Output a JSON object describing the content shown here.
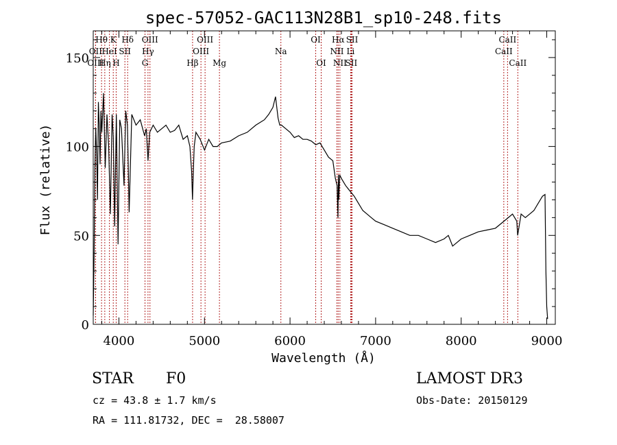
{
  "chart_data": {
    "type": "line",
    "title": "spec-57052-GAC113N28B1_sp10-248.fits",
    "xlabel": "Wavelength (Å)",
    "ylabel": "Flux (relative)",
    "xlim": [
      3700,
      9100
    ],
    "ylim": [
      0,
      165
    ],
    "x_ticks": [
      4000,
      5000,
      6000,
      7000,
      8000,
      9000
    ],
    "y_ticks": [
      0,
      50,
      100,
      150
    ],
    "line_color": "#000000",
    "marker_color": "#b22222",
    "series": [
      {
        "x": [
          3700,
          3710,
          3720,
          3730,
          3740,
          3750,
          3760,
          3770,
          3780,
          3790,
          3800,
          3820,
          3840,
          3860,
          3880,
          3900,
          3920,
          3935,
          3950,
          3970,
          3990,
          4010,
          4030,
          4060,
          4080,
          4100,
          4120,
          4150,
          4200,
          4250,
          4300,
          4320,
          4340,
          4360,
          4400,
          4450,
          4500,
          4550,
          4600,
          4650,
          4700,
          4750,
          4800,
          4830,
          4850,
          4860,
          4870,
          4880,
          4900,
          4950,
          5000,
          5050,
          5100,
          5150,
          5200,
          5300,
          5400,
          5500,
          5600,
          5700,
          5750,
          5800,
          5830,
          5860,
          5880,
          5900,
          5950,
          6000,
          6050,
          6100,
          6150,
          6200,
          6250,
          6300,
          6350,
          6400,
          6450,
          6500,
          6530,
          6550,
          6560,
          6565,
          6570,
          6580,
          6600,
          6650,
          6700,
          6750,
          6800,
          6850,
          6900,
          6950,
          7000,
          7100,
          7200,
          7300,
          7400,
          7500,
          7600,
          7700,
          7800,
          7850,
          7900,
          8000,
          8100,
          8200,
          8300,
          8400,
          8500,
          8550,
          8600,
          8650,
          8660,
          8700,
          8750,
          8800,
          8850,
          8900,
          8950,
          8980,
          8990,
          9000,
          9010
        ],
        "y": [
          5,
          38,
          90,
          110,
          95,
          70,
          125,
          112,
          90,
          120,
          108,
          130,
          88,
          118,
          100,
          62,
          118,
          105,
          55,
          118,
          45,
          115,
          110,
          78,
          120,
          112,
          63,
          118,
          112,
          115,
          106,
          110,
          92,
          108,
          112,
          108,
          110,
          112,
          108,
          109,
          112,
          104,
          106,
          100,
          86,
          70,
          86,
          100,
          108,
          104,
          98,
          104,
          100,
          100,
          102,
          103,
          106,
          108,
          112,
          115,
          118,
          122,
          128,
          116,
          112,
          112,
          110,
          108,
          105,
          106,
          104,
          104,
          103,
          101,
          102,
          98,
          94,
          92,
          82,
          78,
          60,
          84,
          70,
          84,
          82,
          78,
          75,
          72,
          68,
          64,
          62,
          60,
          58,
          56,
          54,
          52,
          50,
          50,
          48,
          46,
          48,
          50,
          44,
          48,
          50,
          52,
          53,
          54,
          58,
          60,
          62,
          58,
          50,
          62,
          60,
          62,
          64,
          68,
          72,
          73,
          30,
          10,
          3
        ]
      }
    ],
    "spectral_lines": [
      {
        "name": "Hθ",
        "x": 3797,
        "row": 0
      },
      {
        "name": "K",
        "x": 3934,
        "row": 0
      },
      {
        "name": "Hδ",
        "x": 4102,
        "row": 0
      },
      {
        "name": "OIII",
        "x": 4363,
        "row": 0
      },
      {
        "name": "OIII",
        "x": 5007,
        "row": 0
      },
      {
        "name": "OI",
        "x": 6300,
        "row": 0
      },
      {
        "name": "Hα",
        "x": 6563,
        "row": 0
      },
      {
        "name": "SII",
        "x": 6725,
        "row": 0
      },
      {
        "name": "CaII",
        "x": 8542,
        "row": 0
      },
      {
        "name": "OII",
        "x": 3727,
        "row": 1
      },
      {
        "name": "HeI",
        "x": 3889,
        "row": 1
      },
      {
        "name": "SII",
        "x": 4070,
        "row": 1
      },
      {
        "name": "Hγ",
        "x": 4340,
        "row": 1
      },
      {
        "name": "OIII",
        "x": 4959,
        "row": 1
      },
      {
        "name": "Na",
        "x": 5893,
        "row": 1
      },
      {
        "name": "NII",
        "x": 6548,
        "row": 1
      },
      {
        "name": "Li",
        "x": 6708,
        "row": 1
      },
      {
        "name": "CaII",
        "x": 8498,
        "row": 1
      },
      {
        "name": "OIII",
        "x": 3727,
        "row": 2
      },
      {
        "name": "Hη",
        "x": 3835,
        "row": 2
      },
      {
        "name": "H",
        "x": 3968,
        "row": 2
      },
      {
        "name": "G",
        "x": 4305,
        "row": 2
      },
      {
        "name": "Hβ",
        "x": 4861,
        "row": 2
      },
      {
        "name": "Mg",
        "x": 5175,
        "row": 2
      },
      {
        "name": "OI",
        "x": 6364,
        "row": 2
      },
      {
        "name": "NII",
        "x": 6583,
        "row": 2
      },
      {
        "name": "SII",
        "x": 6716,
        "row": 2
      },
      {
        "name": "CaII",
        "x": 8662,
        "row": 2
      }
    ]
  },
  "info": {
    "object_class": "STAR",
    "subclass": "F0",
    "survey": "LAMOST DR3",
    "cz": "cz = 43.8 ± 1.7 km/s",
    "obs_date": "Obs-Date: 20150129",
    "coords": "RA = 111.81732, DEC =  28.58007"
  }
}
